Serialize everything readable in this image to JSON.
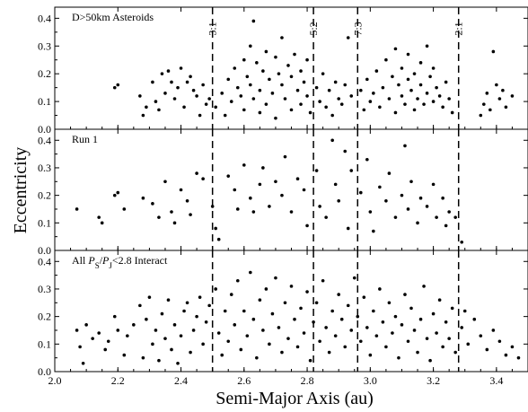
{
  "chart_data": [
    {
      "type": "scatter",
      "title": "D>50km Asteroids",
      "xlim": [
        2.0,
        3.5
      ],
      "ylim": [
        0.0,
        0.44
      ],
      "xticks": [
        2.0,
        2.2,
        2.4,
        2.6,
        2.8,
        3.0,
        3.2,
        3.4
      ],
      "yticks": [
        "0.0",
        "0.1",
        "0.2",
        "0.3",
        "0.4"
      ],
      "resonances": [
        {
          "label": "3:1",
          "a": 2.5
        },
        {
          "label": "5:2",
          "a": 2.82
        },
        {
          "label": "7:3",
          "a": 2.96
        },
        {
          "label": "2:1",
          "a": 3.28
        }
      ],
      "points": [
        [
          2.19,
          0.15
        ],
        [
          2.2,
          0.16
        ],
        [
          2.27,
          0.12
        ],
        [
          2.28,
          0.05
        ],
        [
          2.29,
          0.08
        ],
        [
          2.31,
          0.17
        ],
        [
          2.32,
          0.1
        ],
        [
          2.33,
          0.07
        ],
        [
          2.34,
          0.2
        ],
        [
          2.35,
          0.13
        ],
        [
          2.36,
          0.21
        ],
        [
          2.37,
          0.17
        ],
        [
          2.38,
          0.11
        ],
        [
          2.39,
          0.15
        ],
        [
          2.4,
          0.22
        ],
        [
          2.41,
          0.08
        ],
        [
          2.42,
          0.17
        ],
        [
          2.43,
          0.19
        ],
        [
          2.44,
          0.14
        ],
        [
          2.45,
          0.12
        ],
        [
          2.46,
          0.05
        ],
        [
          2.47,
          0.16
        ],
        [
          2.48,
          0.09
        ],
        [
          2.49,
          0.11
        ],
        [
          2.51,
          0.08
        ],
        [
          2.53,
          0.13
        ],
        [
          2.54,
          0.05
        ],
        [
          2.55,
          0.18
        ],
        [
          2.56,
          0.1
        ],
        [
          2.57,
          0.22
        ],
        [
          2.58,
          0.15
        ],
        [
          2.59,
          0.12
        ],
        [
          2.6,
          0.25
        ],
        [
          2.6,
          0.07
        ],
        [
          2.61,
          0.19
        ],
        [
          2.62,
          0.3
        ],
        [
          2.62,
          0.16
        ],
        [
          2.63,
          0.39
        ],
        [
          2.63,
          0.11
        ],
        [
          2.64,
          0.24
        ],
        [
          2.65,
          0.14
        ],
        [
          2.65,
          0.06
        ],
        [
          2.66,
          0.21
        ],
        [
          2.67,
          0.28
        ],
        [
          2.67,
          0.09
        ],
        [
          2.68,
          0.18
        ],
        [
          2.69,
          0.13
        ],
        [
          2.7,
          0.26
        ],
        [
          2.7,
          0.04
        ],
        [
          2.71,
          0.2
        ],
        [
          2.72,
          0.16
        ],
        [
          2.72,
          0.33
        ],
        [
          2.73,
          0.11
        ],
        [
          2.74,
          0.23
        ],
        [
          2.75,
          0.19
        ],
        [
          2.75,
          0.07
        ],
        [
          2.76,
          0.27
        ],
        [
          2.77,
          0.14
        ],
        [
          2.78,
          0.21
        ],
        [
          2.78,
          0.09
        ],
        [
          2.79,
          0.17
        ],
        [
          2.8,
          0.12
        ],
        [
          2.8,
          0.25
        ],
        [
          2.81,
          0.06
        ],
        [
          2.83,
          0.15
        ],
        [
          2.84,
          0.1
        ],
        [
          2.85,
          0.2
        ],
        [
          2.86,
          0.08
        ],
        [
          2.87,
          0.14
        ],
        [
          2.88,
          0.05
        ],
        [
          2.89,
          0.17
        ],
        [
          2.9,
          0.11
        ],
        [
          2.91,
          0.09
        ],
        [
          2.92,
          0.16
        ],
        [
          2.93,
          0.33
        ],
        [
          2.94,
          0.12
        ],
        [
          2.97,
          0.14
        ],
        [
          2.98,
          0.07
        ],
        [
          2.99,
          0.18
        ],
        [
          3.0,
          0.1
        ],
        [
          3.01,
          0.13
        ],
        [
          3.02,
          0.21
        ],
        [
          3.03,
          0.08
        ],
        [
          3.04,
          0.15
        ],
        [
          3.05,
          0.25
        ],
        [
          3.06,
          0.11
        ],
        [
          3.07,
          0.19
        ],
        [
          3.08,
          0.29
        ],
        [
          3.08,
          0.06
        ],
        [
          3.09,
          0.16
        ],
        [
          3.1,
          0.22
        ],
        [
          3.1,
          0.12
        ],
        [
          3.11,
          0.09
        ],
        [
          3.12,
          0.18
        ],
        [
          3.12,
          0.27
        ],
        [
          3.13,
          0.14
        ],
        [
          3.14,
          0.07
        ],
        [
          3.14,
          0.2
        ],
        [
          3.15,
          0.11
        ],
        [
          3.16,
          0.24
        ],
        [
          3.16,
          0.16
        ],
        [
          3.17,
          0.09
        ],
        [
          3.18,
          0.13
        ],
        [
          3.18,
          0.3
        ],
        [
          3.19,
          0.19
        ],
        [
          3.2,
          0.1
        ],
        [
          3.2,
          0.22
        ],
        [
          3.21,
          0.15
        ],
        [
          3.22,
          0.12
        ],
        [
          3.23,
          0.08
        ],
        [
          3.24,
          0.17
        ],
        [
          3.25,
          0.11
        ],
        [
          3.26,
          0.06
        ],
        [
          3.35,
          0.05
        ],
        [
          3.36,
          0.09
        ],
        [
          3.37,
          0.13
        ],
        [
          3.38,
          0.07
        ],
        [
          3.39,
          0.28
        ],
        [
          3.4,
          0.16
        ],
        [
          3.41,
          0.11
        ],
        [
          3.42,
          0.14
        ],
        [
          3.43,
          0.08
        ],
        [
          3.45,
          0.12
        ]
      ]
    },
    {
      "type": "scatter",
      "title": "Run 1",
      "xlim": [
        2.0,
        3.5
      ],
      "ylim": [
        0.0,
        0.44
      ],
      "points": [
        [
          2.07,
          0.15
        ],
        [
          2.14,
          0.12
        ],
        [
          2.15,
          0.1
        ],
        [
          2.19,
          0.2
        ],
        [
          2.2,
          0.21
        ],
        [
          2.22,
          0.15
        ],
        [
          2.28,
          0.19
        ],
        [
          2.31,
          0.17
        ],
        [
          2.33,
          0.12
        ],
        [
          2.35,
          0.25
        ],
        [
          2.37,
          0.14
        ],
        [
          2.38,
          0.1
        ],
        [
          2.4,
          0.22
        ],
        [
          2.42,
          0.18
        ],
        [
          2.43,
          0.13
        ],
        [
          2.45,
          0.28
        ],
        [
          2.47,
          0.26
        ],
        [
          2.5,
          0.16
        ],
        [
          2.51,
          0.08
        ],
        [
          2.52,
          0.04
        ],
        [
          2.55,
          0.27
        ],
        [
          2.57,
          0.22
        ],
        [
          2.58,
          0.15
        ],
        [
          2.6,
          0.31
        ],
        [
          2.62,
          0.19
        ],
        [
          2.63,
          0.14
        ],
        [
          2.65,
          0.24
        ],
        [
          2.66,
          0.3
        ],
        [
          2.68,
          0.16
        ],
        [
          2.7,
          0.25
        ],
        [
          2.72,
          0.2
        ],
        [
          2.73,
          0.34
        ],
        [
          2.75,
          0.14
        ],
        [
          2.77,
          0.26
        ],
        [
          2.79,
          0.22
        ],
        [
          2.8,
          0.09
        ],
        [
          2.83,
          0.29
        ],
        [
          2.84,
          0.16
        ],
        [
          2.86,
          0.12
        ],
        [
          2.88,
          0.4
        ],
        [
          2.89,
          0.24
        ],
        [
          2.9,
          0.18
        ],
        [
          2.92,
          0.36
        ],
        [
          2.93,
          0.08
        ],
        [
          2.94,
          0.29
        ],
        [
          2.97,
          0.21
        ],
        [
          2.99,
          0.33
        ],
        [
          3.0,
          0.14
        ],
        [
          3.01,
          0.07
        ],
        [
          3.03,
          0.23
        ],
        [
          3.05,
          0.18
        ],
        [
          3.06,
          0.28
        ],
        [
          3.08,
          0.12
        ],
        [
          3.1,
          0.2
        ],
        [
          3.11,
          0.38
        ],
        [
          3.12,
          0.15
        ],
        [
          3.13,
          0.25
        ],
        [
          3.15,
          0.1
        ],
        [
          3.16,
          0.19
        ],
        [
          3.18,
          0.16
        ],
        [
          3.2,
          0.24
        ],
        [
          3.21,
          0.12
        ],
        [
          3.23,
          0.19
        ],
        [
          3.24,
          0.09
        ],
        [
          3.25,
          0.14
        ],
        [
          3.27,
          0.12
        ],
        [
          3.29,
          0.03
        ]
      ]
    },
    {
      "type": "scatter",
      "title": "All P_S/P_J<2.8 Interact",
      "xlim": [
        2.0,
        3.5
      ],
      "ylim": [
        0.0,
        0.44
      ],
      "points": [
        [
          2.07,
          0.15
        ],
        [
          2.08,
          0.09
        ],
        [
          2.09,
          0.03
        ],
        [
          2.1,
          0.17
        ],
        [
          2.12,
          0.12
        ],
        [
          2.14,
          0.14
        ],
        [
          2.16,
          0.08
        ],
        [
          2.17,
          0.11
        ],
        [
          2.19,
          0.2
        ],
        [
          2.2,
          0.15
        ],
        [
          2.22,
          0.06
        ],
        [
          2.23,
          0.13
        ],
        [
          2.25,
          0.17
        ],
        [
          2.27,
          0.24
        ],
        [
          2.28,
          0.05
        ],
        [
          2.29,
          0.19
        ],
        [
          2.3,
          0.27
        ],
        [
          2.31,
          0.1
        ],
        [
          2.32,
          0.15
        ],
        [
          2.33,
          0.04
        ],
        [
          2.34,
          0.21
        ],
        [
          2.35,
          0.12
        ],
        [
          2.36,
          0.26
        ],
        [
          2.37,
          0.08
        ],
        [
          2.38,
          0.17
        ],
        [
          2.39,
          0.03
        ],
        [
          2.4,
          0.13
        ],
        [
          2.41,
          0.22
        ],
        [
          2.42,
          0.25
        ],
        [
          2.43,
          0.07
        ],
        [
          2.44,
          0.15
        ],
        [
          2.45,
          0.2
        ],
        [
          2.46,
          0.27
        ],
        [
          2.47,
          0.1
        ],
        [
          2.48,
          0.18
        ],
        [
          2.49,
          0.24
        ],
        [
          2.51,
          0.3
        ],
        [
          2.52,
          0.14
        ],
        [
          2.53,
          0.06
        ],
        [
          2.54,
          0.22
        ],
        [
          2.55,
          0.11
        ],
        [
          2.56,
          0.28
        ],
        [
          2.57,
          0.17
        ],
        [
          2.58,
          0.33
        ],
        [
          2.59,
          0.08
        ],
        [
          2.6,
          0.22
        ],
        [
          2.61,
          0.13
        ],
        [
          2.62,
          0.36
        ],
        [
          2.63,
          0.19
        ],
        [
          2.64,
          0.05
        ],
        [
          2.65,
          0.26
        ],
        [
          2.66,
          0.15
        ],
        [
          2.67,
          0.3
        ],
        [
          2.68,
          0.1
        ],
        [
          2.69,
          0.21
        ],
        [
          2.7,
          0.34
        ],
        [
          2.71,
          0.16
        ],
        [
          2.72,
          0.07
        ],
        [
          2.73,
          0.25
        ],
        [
          2.74,
          0.12
        ],
        [
          2.75,
          0.31
        ],
        [
          2.76,
          0.19
        ],
        [
          2.77,
          0.09
        ],
        [
          2.78,
          0.23
        ],
        [
          2.79,
          0.14
        ],
        [
          2.8,
          0.29
        ],
        [
          2.81,
          0.04
        ],
        [
          2.82,
          0.18
        ],
        [
          2.83,
          0.25
        ],
        [
          2.84,
          0.11
        ],
        [
          2.85,
          0.33
        ],
        [
          2.86,
          0.16
        ],
        [
          2.87,
          0.07
        ],
        [
          2.88,
          0.22
        ],
        [
          2.89,
          0.13
        ],
        [
          2.9,
          0.28
        ],
        [
          2.91,
          0.19
        ],
        [
          2.92,
          0.09
        ],
        [
          2.93,
          0.24
        ],
        [
          2.94,
          0.15
        ],
        [
          2.95,
          0.34
        ],
        [
          2.96,
          0.2
        ],
        [
          2.97,
          0.11
        ],
        [
          2.98,
          0.27
        ],
        [
          2.99,
          0.16
        ],
        [
          3.0,
          0.06
        ],
        [
          3.01,
          0.22
        ],
        [
          3.02,
          0.13
        ],
        [
          3.03,
          0.3
        ],
        [
          3.04,
          0.18
        ],
        [
          3.05,
          0.09
        ],
        [
          3.06,
          0.25
        ],
        [
          3.07,
          0.14
        ],
        [
          3.08,
          0.2
        ],
        [
          3.09,
          0.05
        ],
        [
          3.1,
          0.17
        ],
        [
          3.11,
          0.28
        ],
        [
          3.12,
          0.11
        ],
        [
          3.13,
          0.23
        ],
        [
          3.14,
          0.15
        ],
        [
          3.15,
          0.07
        ],
        [
          3.16,
          0.19
        ],
        [
          3.17,
          0.31
        ],
        [
          3.18,
          0.12
        ],
        [
          3.19,
          0.04
        ],
        [
          3.2,
          0.21
        ],
        [
          3.21,
          0.14
        ],
        [
          3.22,
          0.26
        ],
        [
          3.23,
          0.09
        ],
        [
          3.24,
          0.18
        ],
        [
          3.25,
          0.12
        ],
        [
          3.26,
          0.23
        ],
        [
          3.27,
          0.07
        ],
        [
          3.29,
          0.16
        ],
        [
          3.3,
          0.22
        ],
        [
          3.31,
          0.1
        ],
        [
          3.33,
          0.19
        ],
        [
          3.35,
          0.13
        ],
        [
          3.37,
          0.08
        ],
        [
          3.39,
          0.15
        ],
        [
          3.41,
          0.11
        ],
        [
          3.43,
          0.06
        ],
        [
          3.45,
          0.09
        ],
        [
          3.47,
          0.05
        ]
      ]
    }
  ],
  "xlabel": "Semi-Major Axis (au)",
  "ylabel": "Eccentricity"
}
